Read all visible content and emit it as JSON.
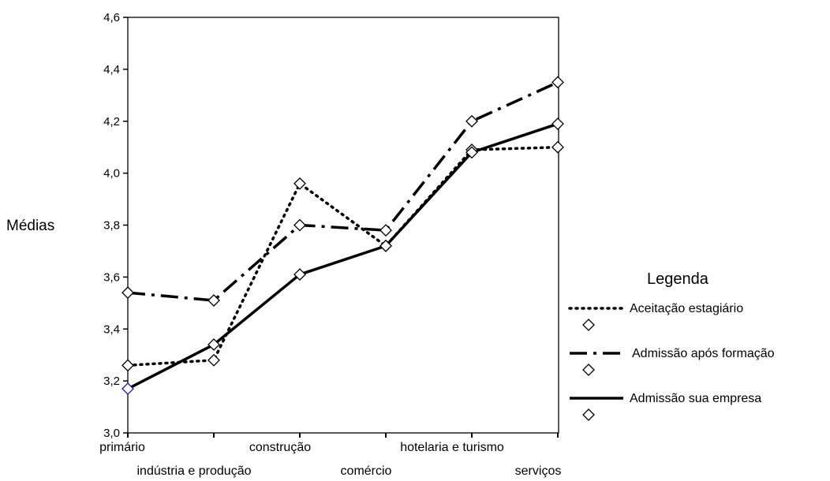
{
  "chart_data": {
    "type": "line",
    "title": "",
    "xlabel": "",
    "ylabel": "Médias",
    "ylim": [
      3.0,
      4.6
    ],
    "yticks": [
      "3,0",
      "3,2",
      "3,4",
      "3,6",
      "3,8",
      "4,0",
      "4,2",
      "4,4",
      "4,6"
    ],
    "categories": [
      "primário",
      "indústria e produção",
      "construção",
      "comércio",
      "hotelaria e turismo",
      "serviços"
    ],
    "legend_title": "Legenda",
    "legend_position": "right",
    "grid": false,
    "series": [
      {
        "name": "Aceitação estagiário",
        "style": "dotted",
        "values": [
          3.26,
          3.28,
          3.96,
          3.72,
          4.09,
          4.1
        ]
      },
      {
        "name": "Admissão após formação",
        "style": "dash-dot",
        "values": [
          3.54,
          3.51,
          3.8,
          3.78,
          4.2,
          4.35
        ]
      },
      {
        "name": "Admissão sua empresa",
        "style": "solid",
        "values": [
          3.17,
          3.34,
          3.61,
          3.72,
          4.08,
          4.19
        ]
      }
    ],
    "marker": "diamond",
    "colors": {
      "line": "#000000",
      "marker": "#000000",
      "highlight_marker": "#1a1aa6"
    }
  }
}
